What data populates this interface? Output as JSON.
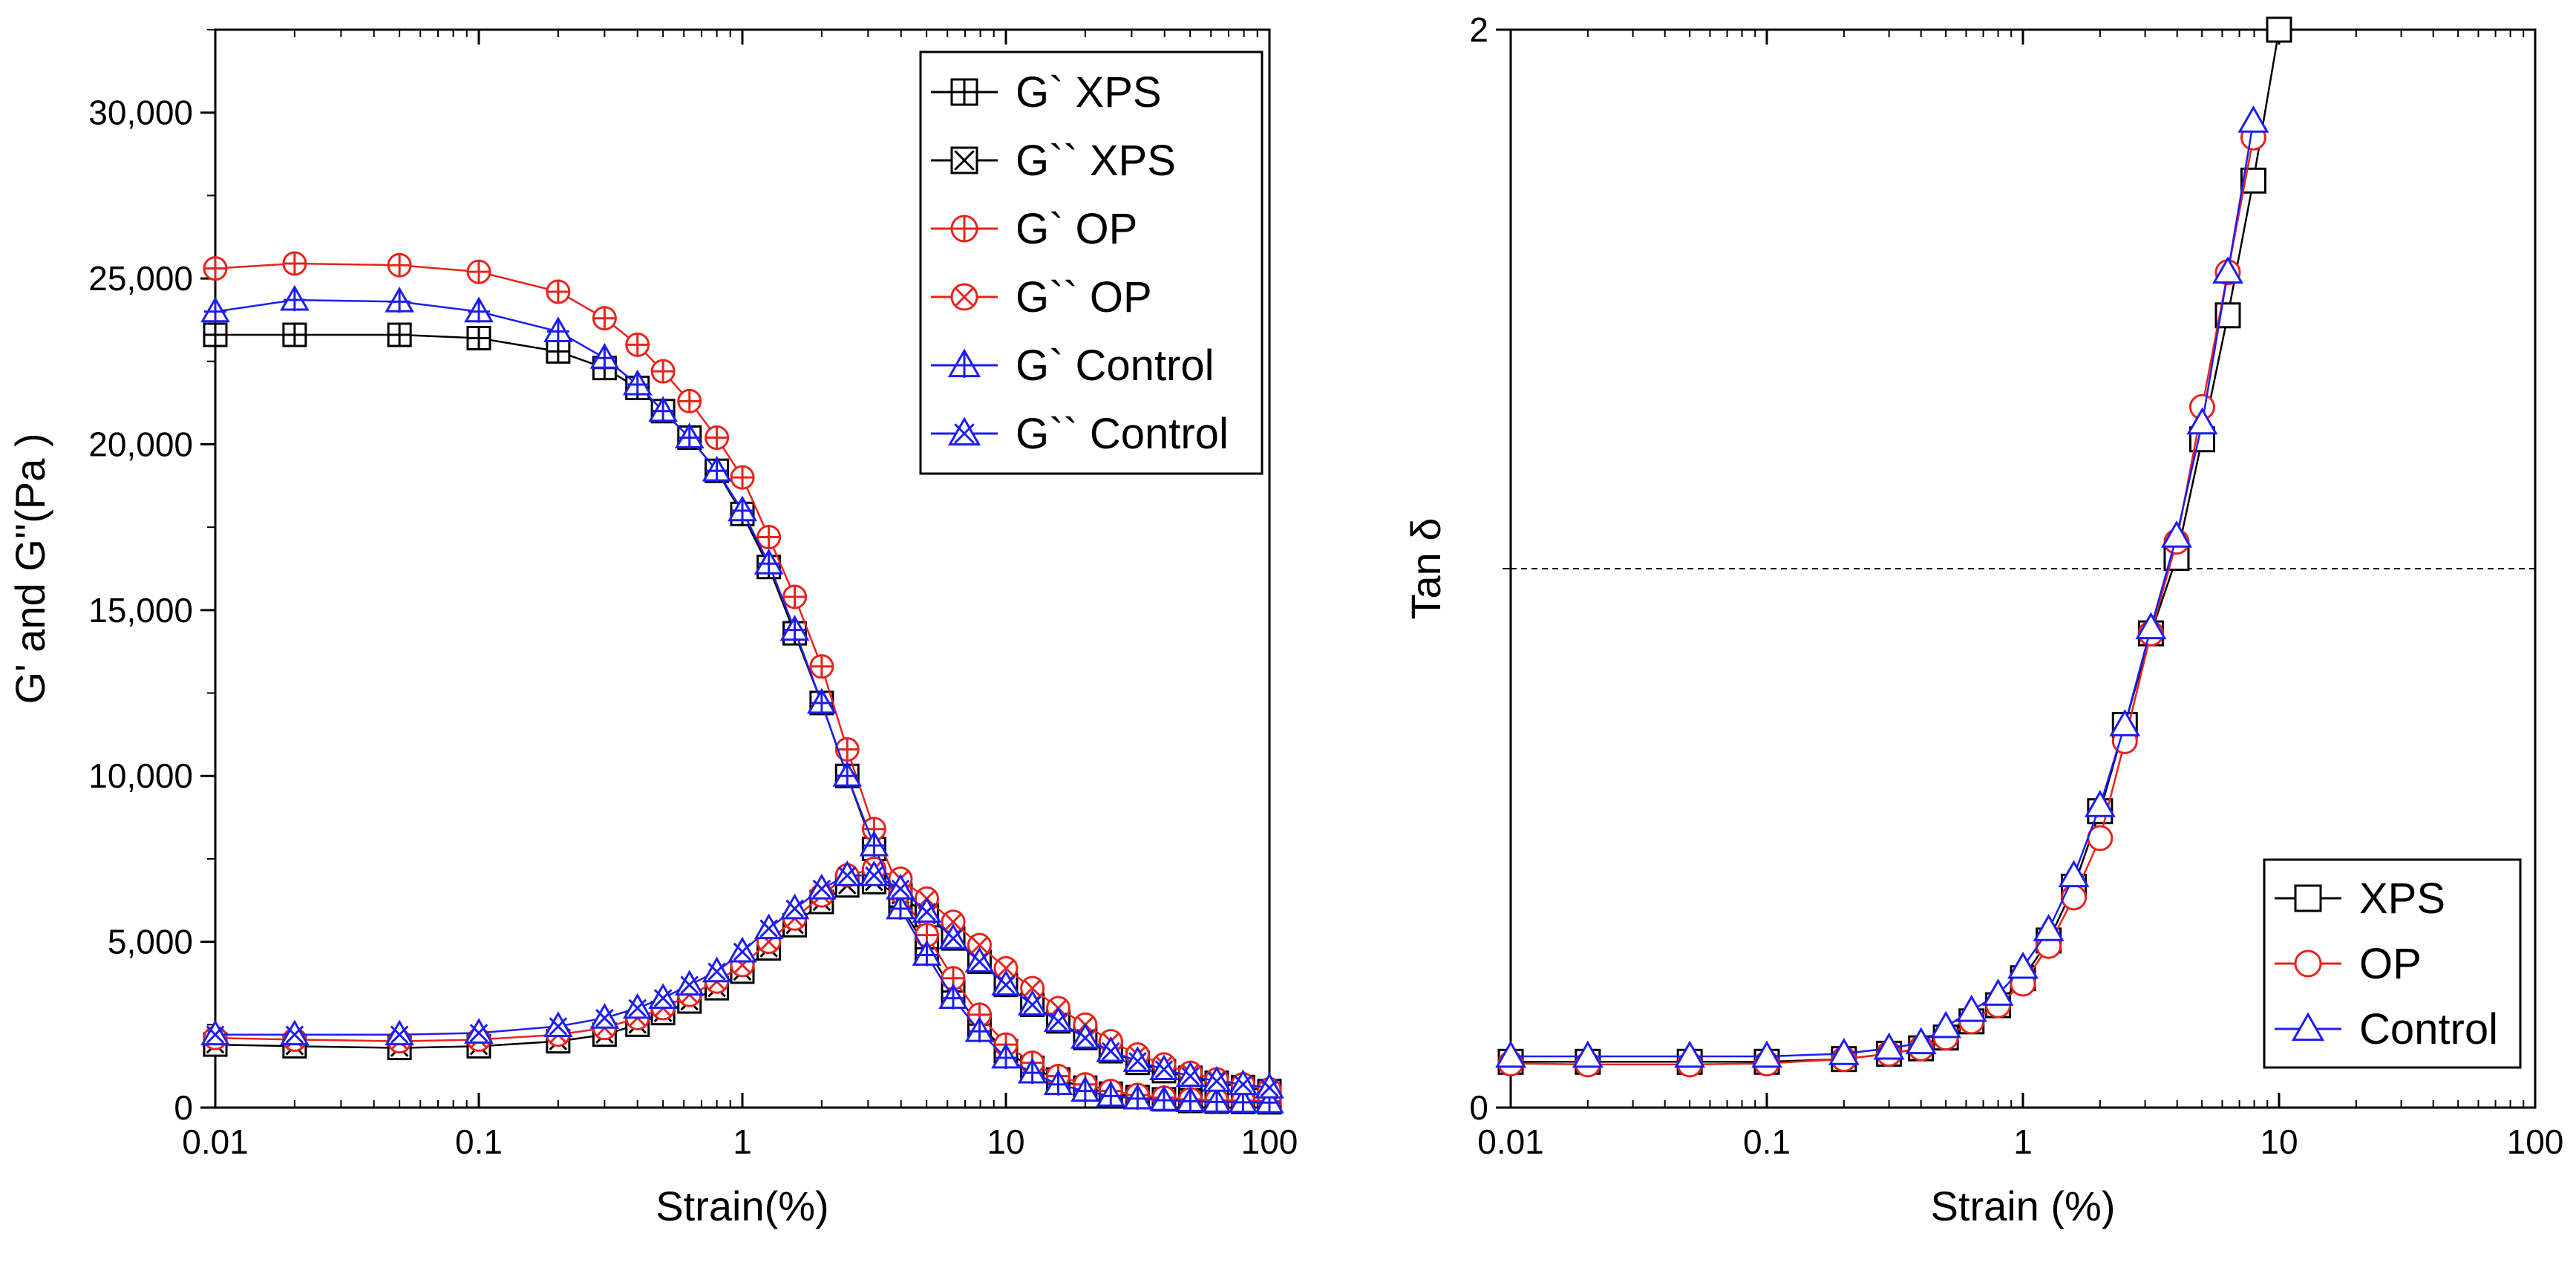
{
  "colors": {
    "XPS": "#000000",
    "OP": "#e8231c",
    "Control": "#1d1df0"
  },
  "chart_data": [
    {
      "type": "line",
      "xscale": "log",
      "xlim": [
        0.01,
        100
      ],
      "ylim": [
        0,
        32500
      ],
      "xlabel": "Strain(%)",
      "ylabel": "G' and G''(Pa )",
      "xticks": [
        "0.01",
        "0.1",
        "1",
        "10",
        "100"
      ],
      "yticks": [
        "0",
        "5,000",
        "10,000",
        "15,000",
        "20,000",
        "25,000",
        "30,000"
      ],
      "ytick_values": [
        0,
        5000,
        10000,
        15000,
        20000,
        25000,
        30000
      ],
      "legend": "top-right",
      "x": [
        0.01,
        0.02,
        0.05,
        0.1,
        0.2,
        0.3,
        0.4,
        0.5,
        0.63,
        0.8,
        1.0,
        1.26,
        1.58,
        2.0,
        2.5,
        3.16,
        3.98,
        5.01,
        6.31,
        7.94,
        10,
        12.6,
        15.8,
        20,
        25,
        31.6,
        39.8,
        50.1,
        63.1,
        79.4,
        100
      ],
      "series": [
        {
          "name": "G` XPS",
          "group": "XPS",
          "marker": "square-plus",
          "values": [
            23300,
            23300,
            23300,
            23200,
            22800,
            22300,
            21700,
            21000,
            20200,
            19200,
            17900,
            16300,
            14300,
            12200,
            10000,
            7800,
            6100,
            4800,
            3500,
            2500,
            1700,
            1200,
            850,
            600,
            420,
            320,
            250,
            200,
            180,
            170,
            160
          ]
        },
        {
          "name": "G`` XPS",
          "group": "XPS",
          "marker": "square-x",
          "values": [
            1900,
            1850,
            1800,
            1850,
            2000,
            2200,
            2500,
            2850,
            3200,
            3600,
            4100,
            4800,
            5500,
            6200,
            6700,
            6800,
            6400,
            5800,
            5100,
            4400,
            3700,
            3100,
            2600,
            2100,
            1700,
            1350,
            1100,
            900,
            750,
            620,
            500
          ]
        },
        {
          "name": "G` OP",
          "group": "OP",
          "marker": "circle-plus",
          "values": [
            25300,
            25450,
            25400,
            25200,
            24600,
            23800,
            23000,
            22200,
            21300,
            20200,
            19000,
            17200,
            15400,
            13300,
            10800,
            8400,
            6500,
            5200,
            3900,
            2800,
            1900,
            1350,
            950,
            700,
            500,
            380,
            300,
            250,
            220,
            210,
            200
          ]
        },
        {
          "name": "G`` OP",
          "group": "OP",
          "marker": "circle-x",
          "values": [
            2100,
            2050,
            2000,
            2050,
            2200,
            2400,
            2700,
            3000,
            3400,
            3800,
            4300,
            5000,
            5700,
            6400,
            7000,
            7200,
            6900,
            6300,
            5600,
            4900,
            4200,
            3600,
            3000,
            2500,
            2000,
            1600,
            1300,
            1050,
            850,
            700,
            550
          ]
        },
        {
          "name": "G` Control",
          "group": "Control",
          "marker": "triangle-plus",
          "values": [
            24000,
            24350,
            24300,
            24000,
            23400,
            22600,
            21800,
            21000,
            20200,
            19200,
            18000,
            16400,
            14400,
            12200,
            10000,
            7900,
            6000,
            4600,
            3300,
            2300,
            1500,
            1050,
            700,
            500,
            350,
            270,
            220,
            190,
            170,
            160,
            150
          ]
        },
        {
          "name": "G`` Control",
          "group": "Control",
          "marker": "triangle-x",
          "values": [
            2200,
            2200,
            2200,
            2250,
            2450,
            2700,
            3000,
            3300,
            3700,
            4100,
            4700,
            5400,
            6000,
            6600,
            7000,
            7000,
            6600,
            5900,
            5100,
            4400,
            3700,
            3100,
            2600,
            2100,
            1700,
            1400,
            1150,
            950,
            800,
            700,
            600
          ]
        }
      ]
    },
    {
      "type": "line",
      "xscale": "log",
      "xlim": [
        0.01,
        100
      ],
      "ylim": [
        0,
        2
      ],
      "xlabel": "Strain (%)",
      "ylabel": "Tan δ",
      "xticks": [
        "0.01",
        "0.1",
        "1",
        "10",
        "100"
      ],
      "yticks": [
        "0",
        "2"
      ],
      "ytick_values": [
        0,
        2
      ],
      "reference_line": {
        "y": 1,
        "style": "dashed"
      },
      "legend": "bottom-right",
      "x": [
        0.01,
        0.02,
        0.05,
        0.1,
        0.2,
        0.3,
        0.4,
        0.5,
        0.63,
        0.8,
        1.0,
        1.26,
        1.58,
        2.0,
        2.5,
        3.16,
        3.98,
        5.01,
        6.31,
        7.94,
        10
      ],
      "series": [
        {
          "name": "XPS",
          "group": "XPS",
          "marker": "square",
          "values": [
            0.085,
            0.085,
            0.085,
            0.085,
            0.09,
            0.1,
            0.11,
            0.13,
            0.16,
            0.19,
            0.24,
            0.31,
            0.41,
            0.55,
            0.71,
            0.88,
            1.02,
            1.24,
            1.47,
            1.72,
            2.0
          ]
        },
        {
          "name": "OP",
          "group": "OP",
          "marker": "circle",
          "values": [
            0.082,
            0.08,
            0.08,
            0.082,
            0.09,
            0.1,
            0.11,
            0.13,
            0.16,
            0.19,
            0.23,
            0.3,
            0.39,
            0.5,
            0.68,
            0.88,
            1.05,
            1.3,
            1.55,
            1.8,
            2.05
          ]
        },
        {
          "name": "Control",
          "group": "Control",
          "marker": "triangle",
          "values": [
            0.095,
            0.095,
            0.095,
            0.095,
            0.1,
            0.11,
            0.12,
            0.15,
            0.18,
            0.21,
            0.26,
            0.33,
            0.43,
            0.56,
            0.71,
            0.89,
            1.06,
            1.27,
            1.55,
            1.83,
            2.05
          ]
        }
      ]
    }
  ]
}
